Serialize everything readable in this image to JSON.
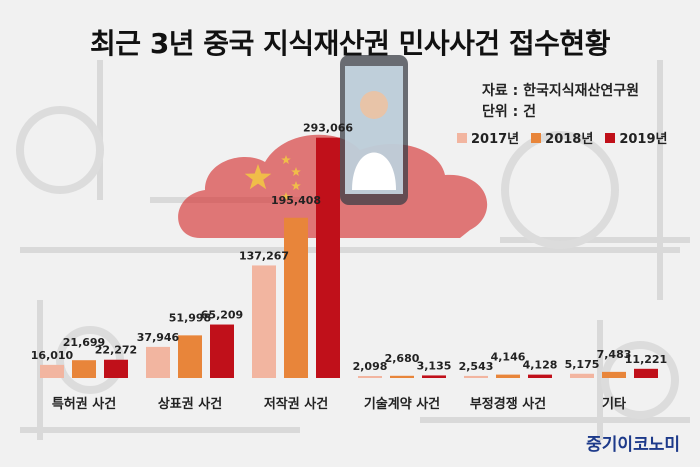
{
  "title": "최근 3년 중국 지식재산권 민사사건 접수현황",
  "source": "자료 : 한국지식재산연구원",
  "unit": "단위 : 건",
  "brand": "중기이코노미",
  "colors": {
    "2017년": "#f2b5a0",
    "2018년": "#e8853a",
    "2019년": "#c0101a"
  },
  "chart_data": {
    "type": "bar",
    "title": "최근 3년 중국 지식재산권 민사사건 접수현황",
    "xlabel": "",
    "ylabel": "",
    "ylim": [
      0,
      300000
    ],
    "grid": false,
    "legend_position": "top-right",
    "categories": [
      "특허권 사건",
      "상표권 사건",
      "저작권 사건",
      "기술계약 사건",
      "부정경쟁 사건",
      "기타"
    ],
    "series": [
      {
        "name": "2017년",
        "values": [
          16010,
          37946,
          137267,
          2098,
          2543,
          5175
        ]
      },
      {
        "name": "2018년",
        "values": [
          21699,
          51998,
          195408,
          2680,
          4146,
          7483
        ]
      },
      {
        "name": "2019년",
        "values": [
          22272,
          65209,
          293066,
          3135,
          4128,
          11221
        ]
      }
    ]
  }
}
